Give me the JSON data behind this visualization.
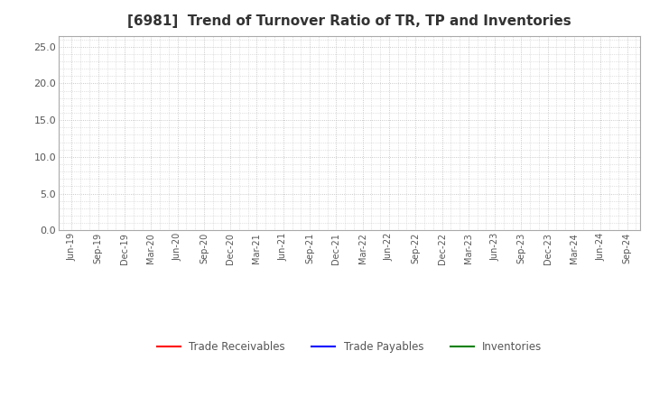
{
  "title": "[6981]  Trend of Turnover Ratio of TR, TP and Inventories",
  "title_fontsize": 11,
  "ylim": [
    0,
    26.5
  ],
  "yticks": [
    0.0,
    5.0,
    10.0,
    15.0,
    20.0,
    25.0
  ],
  "x_labels": [
    "Jun-19",
    "Sep-19",
    "Dec-19",
    "Mar-20",
    "Jun-20",
    "Sep-20",
    "Dec-20",
    "Mar-21",
    "Jun-21",
    "Sep-21",
    "Dec-21",
    "Mar-22",
    "Jun-22",
    "Sep-22",
    "Dec-22",
    "Mar-23",
    "Jun-23",
    "Sep-23",
    "Dec-23",
    "Mar-24",
    "Jun-24",
    "Sep-24"
  ],
  "legend_items": [
    {
      "label": "Trade Receivables",
      "color": "#ff0000"
    },
    {
      "label": "Trade Payables",
      "color": "#0000ff"
    },
    {
      "label": "Inventories",
      "color": "#008000"
    }
  ],
  "grid_color": "#bbbbbb",
  "background_color": "#ffffff",
  "plot_bg_color": "#ffffff",
  "line_width": 1.5,
  "spine_color": "#aaaaaa",
  "tick_label_color": "#555555",
  "title_color": "#333333"
}
